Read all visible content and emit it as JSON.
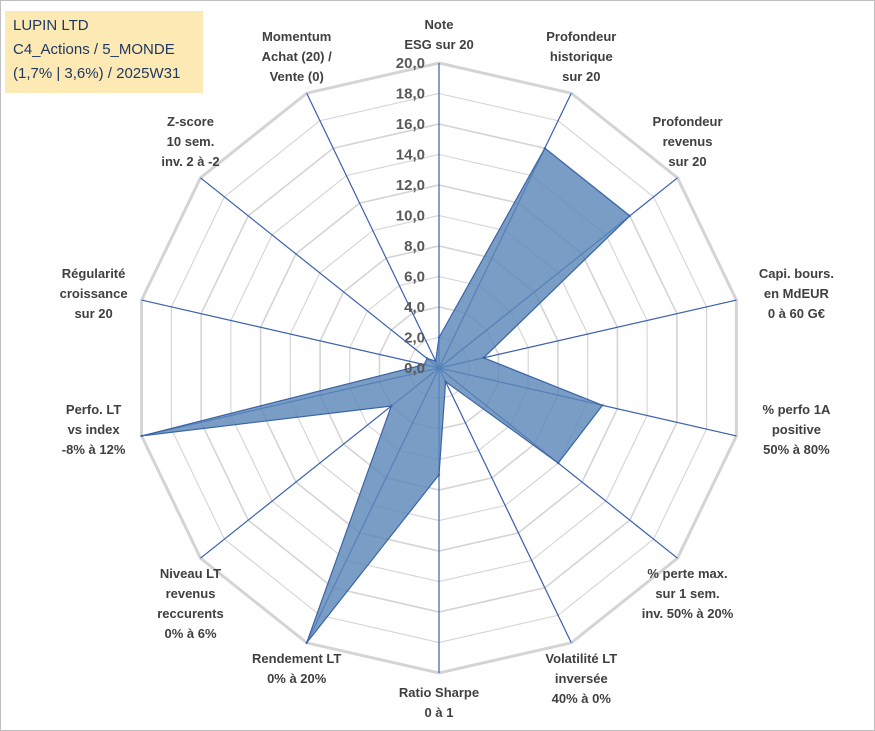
{
  "info": {
    "line1": "LUPIN LTD",
    "line2": "C4_Actions / 5_MONDE",
    "line3": "(1,7% | 3,6%) / 2025W31"
  },
  "chart_data": {
    "type": "radar",
    "rmin": 0,
    "rmax": 20,
    "tick_step": 2,
    "ticks": [
      "0,0",
      "2,0",
      "4,0",
      "6,0",
      "8,0",
      "10,0",
      "12,0",
      "14,0",
      "16,0",
      "18,0",
      "20,0"
    ],
    "categories": [
      [
        "Note",
        "ESG sur 20"
      ],
      [
        "Profondeur",
        "historique",
        "sur 20"
      ],
      [
        "Profondeur",
        "revenus",
        "sur 20"
      ],
      [
        "Capi. bours.",
        "en MdEUR",
        "0 à 60 G€"
      ],
      [
        "% perfo 1A",
        "positive",
        "50% à 80%"
      ],
      [
        "% perte max.",
        "sur 1 sem.",
        "inv. 50% à 20%"
      ],
      [
        "Volatilité LT",
        "inversée",
        "40% à 0%"
      ],
      [
        "Ratio Sharpe",
        "0 à 1"
      ],
      [
        "Rendement LT",
        "0% à 20%"
      ],
      [
        "Niveau LT",
        "revenus",
        "reccurents",
        "0% à 6%"
      ],
      [
        "Perfo. LT",
        "vs index",
        "-8% à 12%"
      ],
      [
        "Régularité",
        "croissance",
        "sur 20"
      ],
      [
        "Z-score",
        "10 sem.",
        "inv. 2 à -2"
      ],
      [
        "Momentum",
        "Achat (20) /",
        "Vente (0)"
      ]
    ],
    "values": [
      2.0,
      16.0,
      16.0,
      3.0,
      11.0,
      10.0,
      1.0,
      7.0,
      20.0,
      4.0,
      20.0,
      1.0,
      1.0,
      0.5
    ],
    "grid": true,
    "legend": "none",
    "colors": {
      "fill": "#5b87b8",
      "stroke": "#3b64a7",
      "grid": "#d4d4d4",
      "spoke": "#3a5fb0"
    }
  }
}
